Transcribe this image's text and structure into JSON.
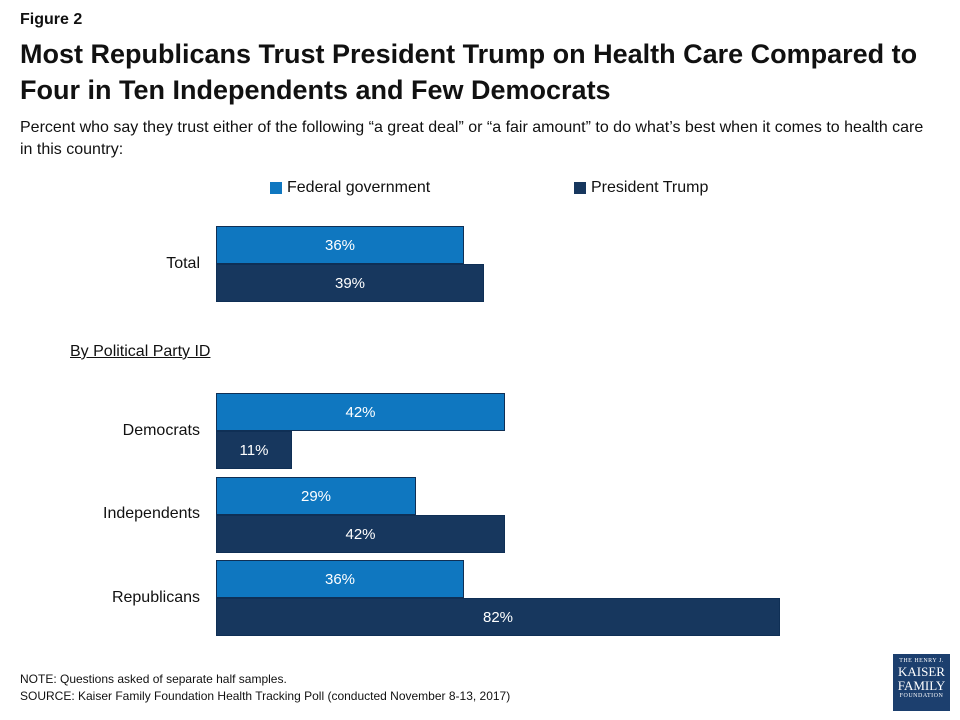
{
  "figure_label": "Figure 2",
  "title": "Most Republicans Trust President Trump on Health Care Compared to Four in Ten Independents and Few Democrats",
  "subtitle": "Percent who say they trust either of the following “a great deal” or “a fair amount” to do what’s best when it comes to health care in this country:",
  "section_label": "By Political Party ID",
  "note": "NOTE: Questions asked of separate half samples.",
  "source": "SOURCE: Kaiser Family Foundation Health Tracking Poll (conducted November 8-13, 2017)",
  "logo": {
    "line1": "THE HENRY J.",
    "line2": "KAISER",
    "line3": "FAMILY",
    "line4": "FOUNDATION"
  },
  "colors": {
    "federal": "#0f77c0",
    "trump": "#17375e"
  },
  "chart_data": {
    "type": "bar",
    "orientation": "horizontal",
    "categories": [
      "Total",
      "Democrats",
      "Independents",
      "Republicans"
    ],
    "series": [
      {
        "name": "Federal government",
        "values": [
          36,
          42,
          29,
          36
        ],
        "labels": [
          "36%",
          "42%",
          "29%",
          "36%"
        ]
      },
      {
        "name": "President Trump",
        "values": [
          39,
          11,
          42,
          82
        ],
        "labels": [
          "39%",
          "11%",
          "42%",
          "82%"
        ]
      }
    ],
    "xlim": [
      0,
      100
    ],
    "legend": "top",
    "grid": false
  }
}
